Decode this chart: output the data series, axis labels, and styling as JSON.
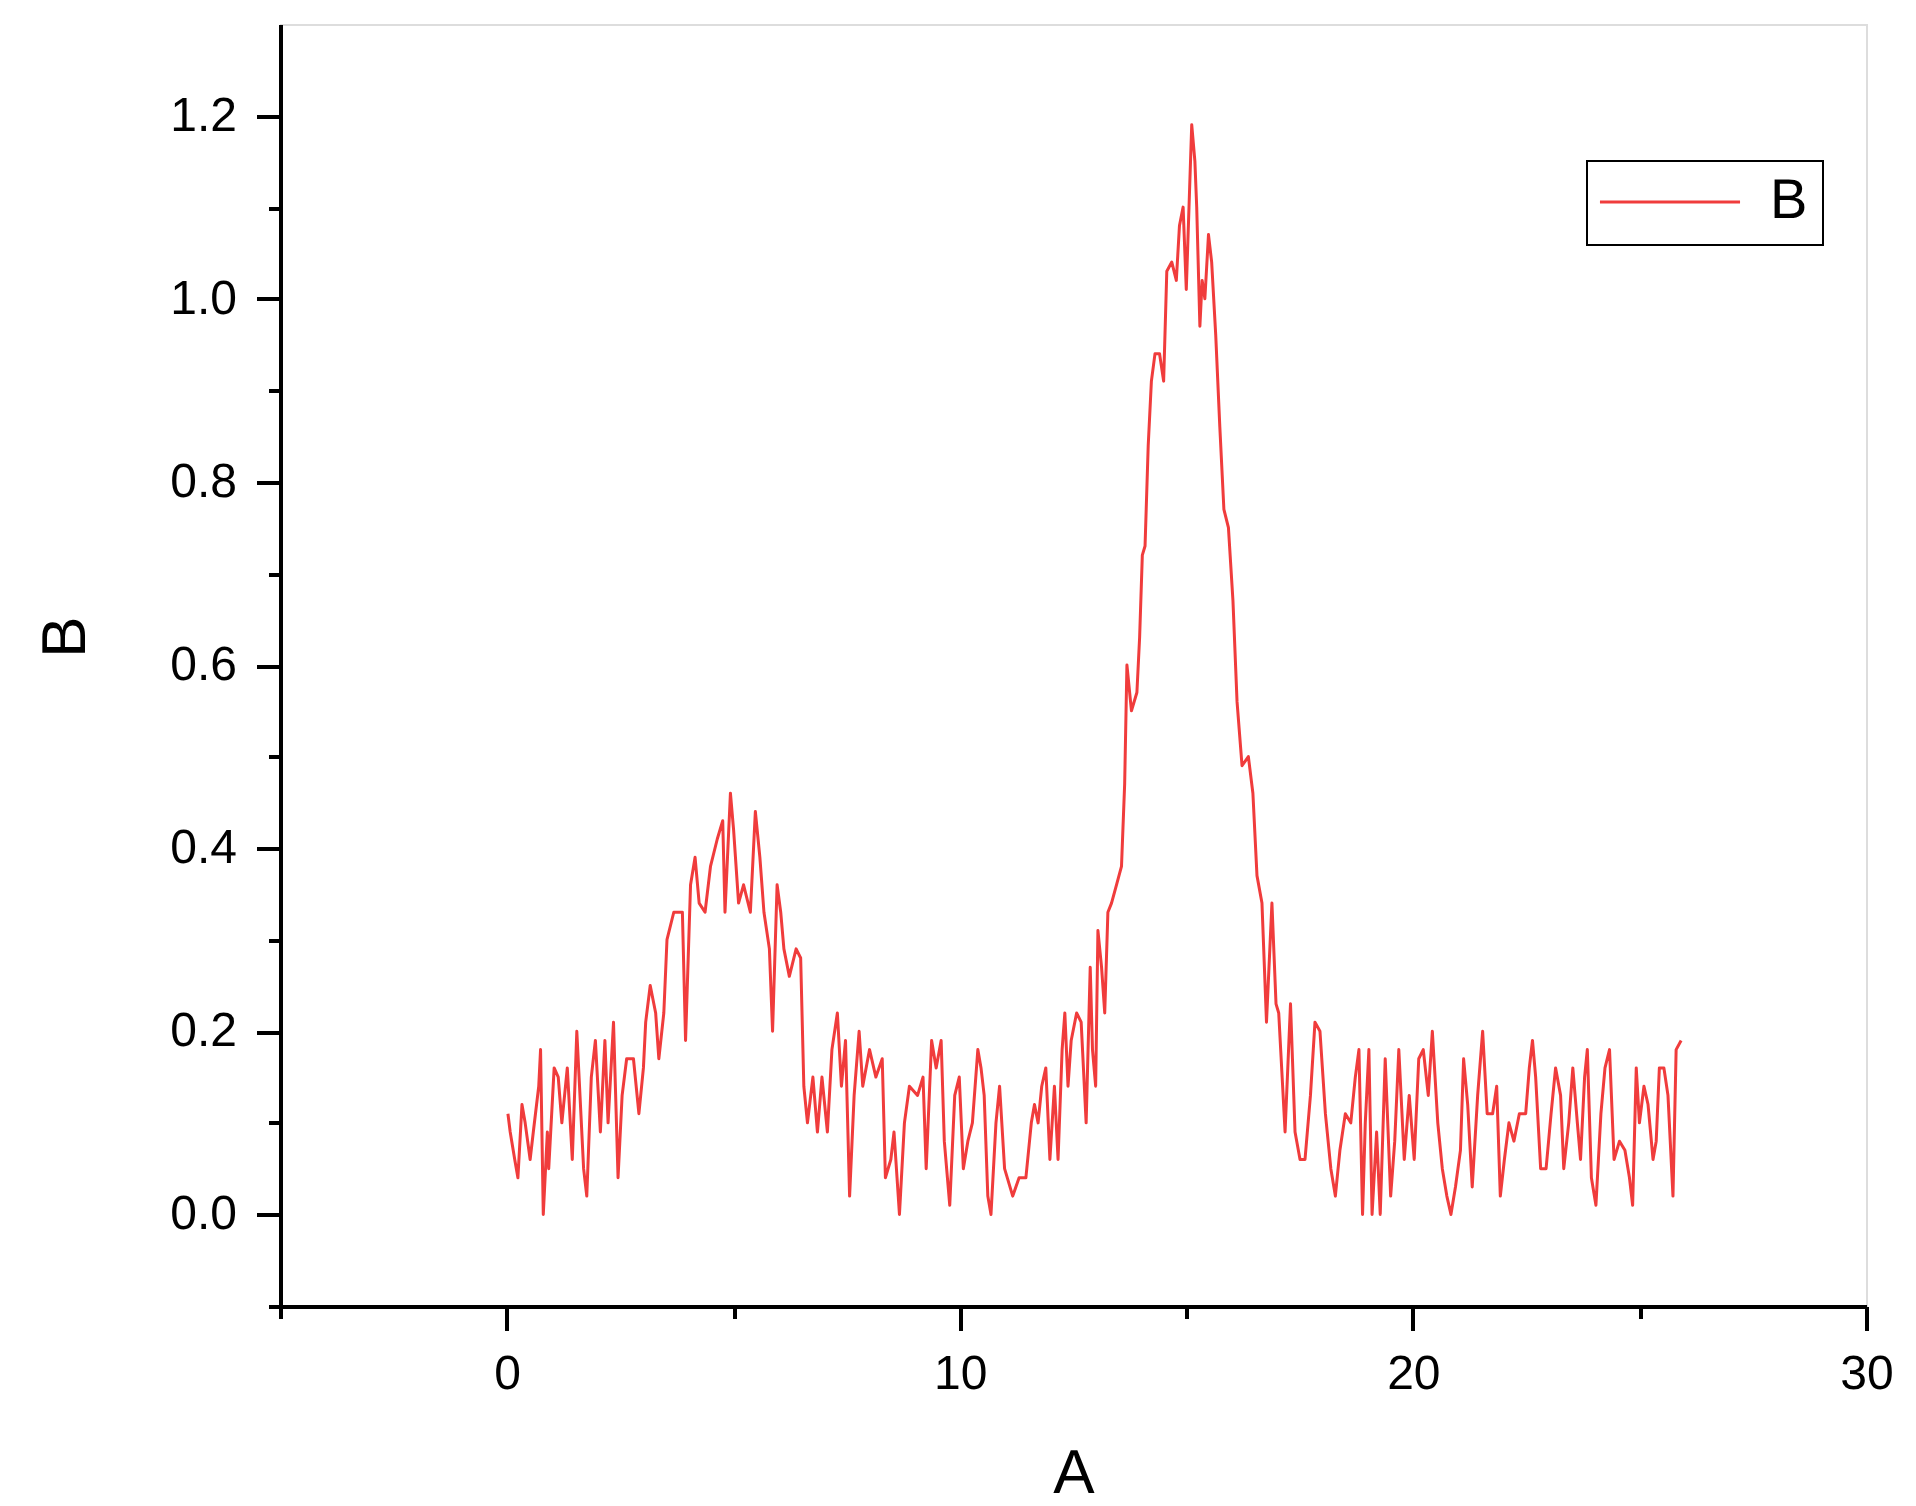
{
  "chart_data": {
    "type": "line",
    "xlabel": "A",
    "ylabel": "B",
    "xlim": [
      -5,
      30
    ],
    "ylim": [
      -0.1,
      1.3
    ],
    "xticks": [
      {
        "value": -5,
        "label": null
      },
      0,
      {
        "value": 5,
        "label": null
      },
      10,
      {
        "value": 15,
        "label": null
      },
      20,
      {
        "value": 25,
        "label": null
      },
      30
    ],
    "yticks": [
      {
        "value": -0.1,
        "label": null
      },
      {
        "value": 0,
        "label": "0.0"
      },
      {
        "value": 0.1,
        "label": null
      },
      0.2,
      {
        "value": 0.3,
        "label": null
      },
      0.4,
      {
        "value": 0.5,
        "label": null
      },
      0.6,
      {
        "value": 0.7,
        "label": null
      },
      0.8,
      {
        "value": 0.9,
        "label": null
      },
      {
        "value": 1,
        "label": "1.0"
      },
      {
        "value": 1.1,
        "label": null
      },
      1.2
    ],
    "grid": false,
    "legend": "top right",
    "marker": "none",
    "line_style": "solid",
    "x": [
      0.03,
      0.08,
      0.18,
      0.25,
      0.34,
      0.41,
      0.52,
      0.59,
      0.71,
      0.75,
      0.81,
      0.9,
      0.93,
      1.05,
      1.14,
      1.22,
      1.34,
      1.45,
      1.55,
      1.62,
      1.7,
      1.77,
      1.87,
      1.96,
      2.07,
      2.17,
      2.24,
      2.36,
      2.46,
      2.55,
      2.65,
      2.8,
      2.92,
      3.02,
      3.07,
      3.17,
      3.29,
      3.36,
      3.47,
      3.54,
      3.69,
      3.88,
      3.95,
      4.06,
      4.16,
      4.25,
      4.38,
      4.5,
      4.65,
      4.77,
      4.82,
      4.94,
      5.01,
      5.12,
      5.23,
      5.38,
      5.49,
      5.59,
      5.68,
      5.8,
      5.87,
      5.97,
      6.05,
      6.12,
      6.24,
      6.39,
      6.49,
      6.56,
      6.64,
      6.76,
      6.86,
      6.96,
      7.08,
      7.18,
      7.3,
      7.39,
      7.48,
      7.57,
      7.67,
      7.78,
      7.86,
      8.01,
      8.15,
      8.29,
      8.36,
      8.48,
      8.55,
      8.67,
      8.78,
      8.89,
      9.07,
      9.19,
      9.26,
      9.38,
      9.48,
      9.59,
      9.66,
      9.78,
      9.89,
      9.99,
      10.08,
      10.18,
      10.28,
      10.4,
      10.47,
      10.54,
      10.62,
      10.69,
      10.8,
      10.88,
      10.99,
      11.17,
      11.31,
      11.46,
      11.58,
      11.65,
      11.73,
      11.81,
      11.9,
      11.99,
      12.09,
      12.17,
      12.26,
      12.32,
      12.39,
      12.46,
      12.58,
      12.68,
      12.79,
      12.88,
      12.93,
      13.0,
      13.05,
      13.13,
      13.2,
      13.27,
      13.35,
      13.46,
      13.57,
      13.64,
      13.69,
      13.79,
      13.91,
      13.97,
      14.03,
      14.09,
      14.16,
      14.23,
      14.31,
      14.41,
      14.5,
      14.57,
      14.68,
      14.78,
      14.85,
      14.93,
      15.0,
      15.06,
      15.12,
      15.19,
      15.23,
      15.3,
      15.35,
      15.41,
      15.49,
      15.56,
      15.65,
      15.74,
      15.83,
      15.93,
      16.03,
      16.12,
      16.23,
      16.37,
      16.47,
      16.56,
      16.67,
      16.77,
      16.89,
      16.98,
      17.04,
      17.18,
      17.3,
      17.4,
      17.51,
      17.62,
      17.74,
      17.84,
      17.95,
      18.07,
      18.19,
      18.29,
      18.39,
      18.51,
      18.63,
      18.73,
      18.81,
      18.89,
      18.95,
      19.03,
      19.1,
      19.2,
      19.28,
      19.39,
      19.51,
      19.6,
      19.69,
      19.81,
      19.92,
      20.03,
      20.13,
      20.23,
      20.34,
      20.43,
      20.55,
      20.65,
      20.75,
      20.84,
      20.94,
      21.05,
      21.12,
      21.21,
      21.31,
      21.43,
      21.54,
      21.64,
      21.76,
      21.85,
      21.93,
      22.02,
      22.12,
      22.23,
      22.35,
      22.49,
      22.57,
      22.64,
      22.71,
      22.82,
      22.94,
      23.05,
      23.15,
      23.26,
      23.33,
      23.44,
      23.53,
      23.63,
      23.7,
      23.79,
      23.85,
      23.94,
      24.04,
      24.15,
      24.24,
      24.34,
      24.44,
      24.56,
      24.68,
      24.78,
      24.85,
      24.93,
      25.0,
      25.1,
      25.19,
      25.3,
      25.37,
      25.44,
      25.54,
      25.63,
      25.74,
      25.81,
      25.92
    ],
    "series": [
      {
        "name": "B",
        "color": "#f03c3c",
        "values": [
          0.11,
          0.09,
          0.06,
          0.04,
          0.12,
          0.1,
          0.06,
          0.09,
          0.14,
          0.18,
          0.0,
          0.09,
          0.05,
          0.16,
          0.15,
          0.1,
          0.16,
          0.06,
          0.2,
          0.13,
          0.05,
          0.02,
          0.15,
          0.19,
          0.09,
          0.19,
          0.1,
          0.21,
          0.04,
          0.13,
          0.17,
          0.17,
          0.11,
          0.16,
          0.21,
          0.25,
          0.22,
          0.17,
          0.22,
          0.3,
          0.33,
          0.33,
          0.19,
          0.36,
          0.39,
          0.34,
          0.33,
          0.38,
          0.41,
          0.43,
          0.33,
          0.46,
          0.42,
          0.34,
          0.36,
          0.33,
          0.44,
          0.39,
          0.33,
          0.29,
          0.2,
          0.36,
          0.33,
          0.29,
          0.26,
          0.29,
          0.28,
          0.14,
          0.1,
          0.15,
          0.09,
          0.15,
          0.09,
          0.18,
          0.22,
          0.14,
          0.19,
          0.02,
          0.13,
          0.2,
          0.14,
          0.18,
          0.15,
          0.17,
          0.04,
          0.06,
          0.09,
          0.0,
          0.1,
          0.14,
          0.13,
          0.15,
          0.05,
          0.19,
          0.16,
          0.19,
          0.08,
          0.01,
          0.13,
          0.15,
          0.05,
          0.08,
          0.1,
          0.18,
          0.16,
          0.13,
          0.02,
          0.0,
          0.1,
          0.14,
          0.05,
          0.02,
          0.04,
          0.04,
          0.1,
          0.12,
          0.1,
          0.14,
          0.16,
          0.06,
          0.14,
          0.06,
          0.18,
          0.22,
          0.14,
          0.19,
          0.22,
          0.21,
          0.1,
          0.27,
          0.18,
          0.14,
          0.31,
          0.27,
          0.22,
          0.33,
          0.34,
          0.36,
          0.38,
          0.47,
          0.6,
          0.55,
          0.57,
          0.63,
          0.72,
          0.73,
          0.84,
          0.91,
          0.94,
          0.94,
          0.91,
          1.03,
          1.04,
          1.02,
          1.08,
          1.1,
          1.01,
          1.1,
          1.19,
          1.15,
          1.1,
          0.97,
          1.02,
          1.0,
          1.07,
          1.04,
          0.96,
          0.86,
          0.77,
          0.75,
          0.67,
          0.56,
          0.49,
          0.5,
          0.46,
          0.37,
          0.34,
          0.21,
          0.34,
          0.23,
          0.22,
          0.09,
          0.23,
          0.09,
          0.06,
          0.06,
          0.13,
          0.21,
          0.2,
          0.11,
          0.05,
          0.02,
          0.07,
          0.11,
          0.1,
          0.15,
          0.18,
          0.0,
          0.1,
          0.18,
          0.0,
          0.09,
          0.0,
          0.17,
          0.02,
          0.08,
          0.18,
          0.06,
          0.13,
          0.06,
          0.17,
          0.18,
          0.13,
          0.2,
          0.1,
          0.05,
          0.02,
          0.0,
          0.03,
          0.07,
          0.17,
          0.12,
          0.03,
          0.13,
          0.2,
          0.11,
          0.11,
          0.14,
          0.02,
          0.06,
          0.1,
          0.08,
          0.11,
          0.11,
          0.16,
          0.19,
          0.15,
          0.05,
          0.05,
          0.11,
          0.16,
          0.13,
          0.05,
          0.1,
          0.16,
          0.1,
          0.06,
          0.15,
          0.18,
          0.04,
          0.01,
          0.11,
          0.16,
          0.18,
          0.06,
          0.08,
          0.07,
          0.04,
          0.01,
          0.16,
          0.1,
          0.14,
          0.12,
          0.06,
          0.08,
          0.16,
          0.16,
          0.13,
          0.02,
          0.18,
          0.19
        ]
      }
    ]
  }
}
